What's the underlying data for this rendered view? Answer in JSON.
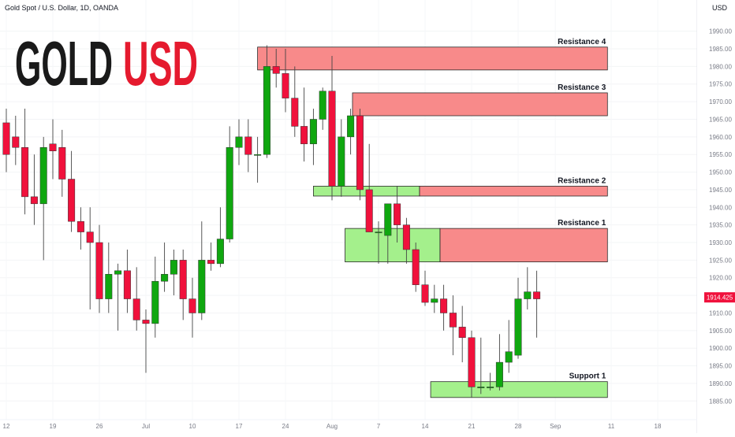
{
  "header": {
    "symbol_line": "Gold Spot / U.S. Dollar, 1D, OANDA",
    "currency_label": "USD"
  },
  "brand": {
    "part1": "GOLD",
    "part2": "USD",
    "part1_color": "#1a1a1a",
    "part2_color": "#e51a2e"
  },
  "colors": {
    "up": "#0fa70f",
    "down": "#f0113c",
    "resistance_fill": "#f88a8a",
    "support_fill": "#a4f08c",
    "last_price_bg": "#f0113c"
  },
  "chart_data": {
    "type": "candlestick",
    "y_range": [
      1883.5,
      1993.5
    ],
    "y_ticks": [
      1885,
      1890,
      1895,
      1900,
      1905,
      1910,
      1915,
      1920,
      1925,
      1930,
      1935,
      1940,
      1945,
      1950,
      1955,
      1960,
      1965,
      1970,
      1975,
      1980,
      1985,
      1990
    ],
    "x_ticks": [
      {
        "label": "12",
        "bar": 0
      },
      {
        "label": "19",
        "bar": 5
      },
      {
        "label": "26",
        "bar": 10
      },
      {
        "label": "Jul",
        "bar": 15
      },
      {
        "label": "10",
        "bar": 20
      },
      {
        "label": "17",
        "bar": 25
      },
      {
        "label": "24",
        "bar": 30
      },
      {
        "label": "Aug",
        "bar": 35
      },
      {
        "label": "7",
        "bar": 40
      },
      {
        "label": "14",
        "bar": 45
      },
      {
        "label": "21",
        "bar": 50
      },
      {
        "label": "28",
        "bar": 55
      },
      {
        "label": "Sep",
        "bar": 59
      },
      {
        "label": "11",
        "bar": 65
      },
      {
        "label": "18",
        "bar": 70
      }
    ],
    "last_price": 1914.425,
    "candles": [
      [
        1964,
        1968,
        1950,
        1955
      ],
      [
        1960,
        1966,
        1952,
        1957
      ],
      [
        1957,
        1968,
        1938,
        1943
      ],
      [
        1943,
        1955,
        1935,
        1941
      ],
      [
        1941,
        1960,
        1925,
        1957
      ],
      [
        1958,
        1965,
        1948,
        1956
      ],
      [
        1957,
        1962,
        1943,
        1948
      ],
      [
        1948,
        1956,
        1933,
        1936
      ],
      [
        1936,
        1940,
        1928,
        1933
      ],
      [
        1933,
        1940,
        1911,
        1930
      ],
      [
        1930,
        1935,
        1910,
        1914
      ],
      [
        1914,
        1930,
        1910,
        1921
      ],
      [
        1921,
        1924,
        1905,
        1922
      ],
      [
        1922,
        1928,
        1910,
        1914
      ],
      [
        1914,
        1923,
        1905,
        1908
      ],
      [
        1908,
        1911,
        1893,
        1907
      ],
      [
        1907,
        1926,
        1903,
        1919
      ],
      [
        1919,
        1930,
        1916,
        1921
      ],
      [
        1921,
        1928,
        1915,
        1925
      ],
      [
        1925,
        1928,
        1908,
        1914
      ],
      [
        1914,
        1920,
        1903,
        1910
      ],
      [
        1910,
        1936,
        1908,
        1925
      ],
      [
        1925,
        1930,
        1922,
        1924
      ],
      [
        1924,
        1940,
        1923,
        1931
      ],
      [
        1931,
        1963,
        1930,
        1957
      ],
      [
        1957,
        1965,
        1952,
        1960
      ],
      [
        1960,
        1965,
        1950,
        1955
      ],
      [
        1955,
        1960,
        1947,
        1955
      ],
      [
        1955,
        1986,
        1954,
        1980
      ],
      [
        1980,
        1985,
        1974,
        1978
      ],
      [
        1978,
        1985,
        1967,
        1971
      ],
      [
        1971,
        1980,
        1960,
        1963
      ],
      [
        1963,
        1974,
        1953,
        1958
      ],
      [
        1958,
        1968,
        1952,
        1965
      ],
      [
        1965,
        1974,
        1962,
        1973
      ],
      [
        1973,
        1983,
        1942,
        1946
      ],
      [
        1946,
        1965,
        1943,
        1960
      ],
      [
        1960,
        1968,
        1955,
        1966
      ],
      [
        1966,
        1968,
        1942,
        1945
      ],
      [
        1945,
        1958,
        1933,
        1933
      ],
      [
        1933,
        1936,
        1924,
        1933
      ],
      [
        1932,
        1941,
        1924,
        1941
      ],
      [
        1941,
        1946,
        1930,
        1935
      ],
      [
        1935,
        1937,
        1924,
        1928
      ],
      [
        1928,
        1930,
        1916,
        1918
      ],
      [
        1918,
        1922,
        1912,
        1913
      ],
      [
        1913,
        1918,
        1910,
        1914
      ],
      [
        1914,
        1918,
        1905,
        1910
      ],
      [
        1910,
        1915,
        1898,
        1906
      ],
      [
        1906,
        1912,
        1896,
        1903
      ],
      [
        1903,
        1905,
        1886,
        1889
      ],
      [
        1889,
        1903,
        1887,
        1889
      ],
      [
        1889,
        1893,
        1888,
        1889
      ],
      [
        1889,
        1904,
        1888,
        1896
      ],
      [
        1896,
        1908,
        1893,
        1899
      ],
      [
        1898,
        1920,
        1897,
        1914
      ],
      [
        1914,
        1923,
        1911,
        1916
      ],
      [
        1916,
        1922,
        1903,
        1914
      ]
    ],
    "zones": [
      {
        "label": "Resistance 4",
        "kind": "resistance",
        "top": 1985.5,
        "bottom": 1979.0,
        "start_bar": 27.0,
        "end_bar": 64.6
      },
      {
        "label": "Resistance 3",
        "kind": "resistance",
        "top": 1972.5,
        "bottom": 1966.0,
        "start_bar": 37.2,
        "end_bar": 64.6
      },
      {
        "label": "Resistance 2",
        "kind": "resistance",
        "top": 1946.0,
        "bottom": 1943.2,
        "start_bar": 44.4,
        "end_bar": 64.6
      },
      {
        "label": "",
        "kind": "support",
        "top": 1946.0,
        "bottom": 1943.2,
        "start_bar": 33.0,
        "end_bar": 44.4
      },
      {
        "label": "Resistance 1",
        "kind": "resistance",
        "top": 1934.0,
        "bottom": 1924.5,
        "start_bar": 46.6,
        "end_bar": 64.6
      },
      {
        "label": "",
        "kind": "support",
        "top": 1934.0,
        "bottom": 1924.5,
        "start_bar": 36.4,
        "end_bar": 46.6
      },
      {
        "label": "Support 1",
        "kind": "support",
        "top": 1890.5,
        "bottom": 1886.0,
        "start_bar": 45.6,
        "end_bar": 64.6
      }
    ]
  }
}
